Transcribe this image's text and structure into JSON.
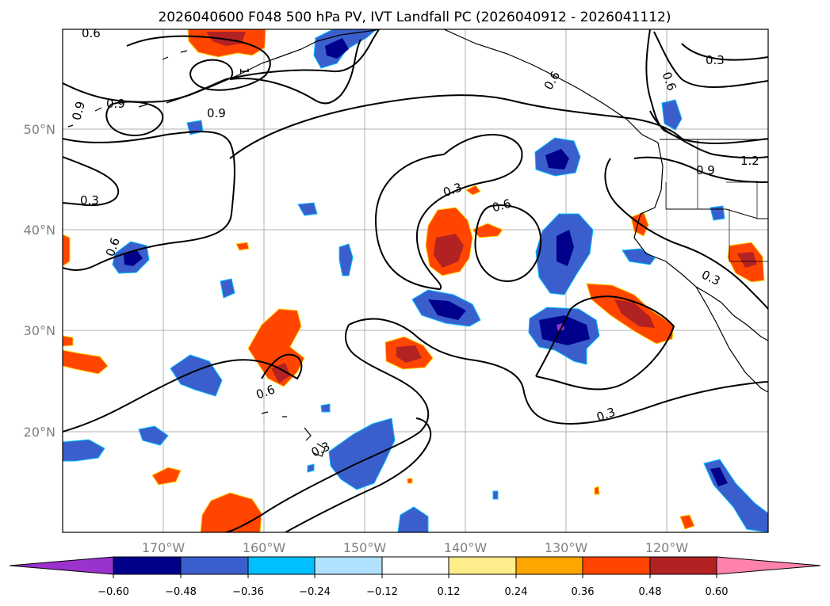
{
  "title": "2026040600 F048 500 hPa PV, IVT Landfall PC (2026040912 - 2026041112)",
  "axes": {
    "lon_ticks": [
      "170°W",
      "160°W",
      "150°W",
      "140°W",
      "130°W",
      "120°W"
    ],
    "lat_ticks": [
      "50°N",
      "40°N",
      "30°N",
      "20°N"
    ]
  },
  "colorbar": {
    "ticks": [
      "−0.60",
      "−0.48",
      "−0.36",
      "−0.24",
      "−0.12",
      "0.12",
      "0.24",
      "0.36",
      "0.48",
      "0.60"
    ],
    "colors": [
      "#9a32cd",
      "#00008b",
      "#3a5fcd",
      "#00bfff",
      "#b0e2ff",
      "#ffffff",
      "#ffec8b",
      "#ffa500",
      "#ff4500",
      "#b22222",
      "#ff82ab"
    ]
  },
  "contour_labels": [
    "0.6",
    "0.9",
    "0.9",
    "0.9",
    "0.3",
    "0.6",
    "0.3",
    "0.6",
    "0.3",
    "0.6",
    "0.9",
    "1.2",
    "0.3",
    "0.6",
    "0.3",
    "0.3",
    "0.6",
    "1"
  ],
  "colors": {
    "grid": "#b0b0b0",
    "tick_text": "#7f7f7f"
  }
}
